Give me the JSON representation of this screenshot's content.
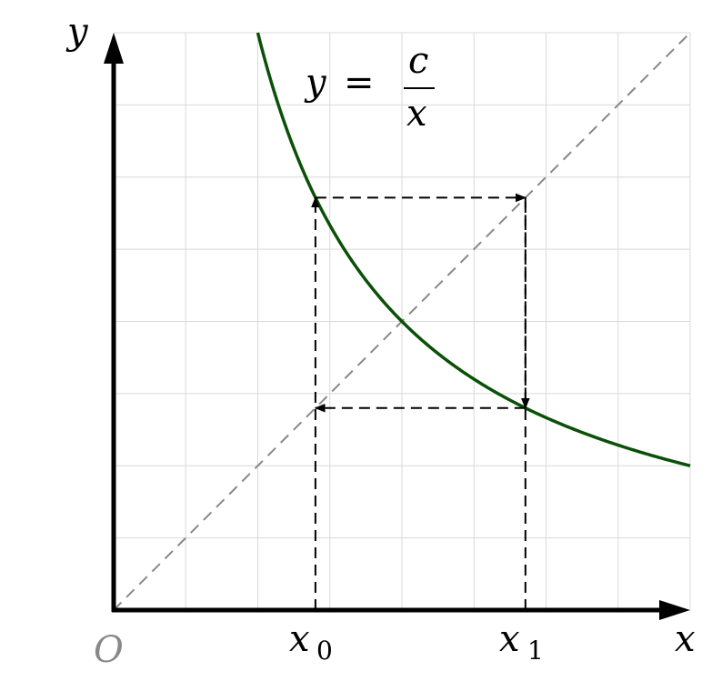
{
  "chart_data": {
    "type": "line",
    "function": "y = c/x",
    "c": 16,
    "xlim": [
      0,
      8
    ],
    "ylim": [
      0,
      8
    ],
    "grid": true,
    "xlabel": "x",
    "ylabel": "y",
    "origin_label": "O",
    "equation": {
      "lhs": "y",
      "eq": "=",
      "num": "c",
      "den": "x"
    },
    "curve_color": "#0b5008",
    "diagonal": {
      "equation": "y = x",
      "style": "dashed",
      "color": "#888888"
    },
    "cobweb": {
      "x0": 2.8,
      "x1": 5.714,
      "color": "#000000",
      "style": "dashed"
    },
    "markers": [
      {
        "label": "x",
        "sub": "0",
        "value": 2.8
      },
      {
        "label": "x",
        "sub": "1",
        "value": 5.714
      }
    ]
  }
}
